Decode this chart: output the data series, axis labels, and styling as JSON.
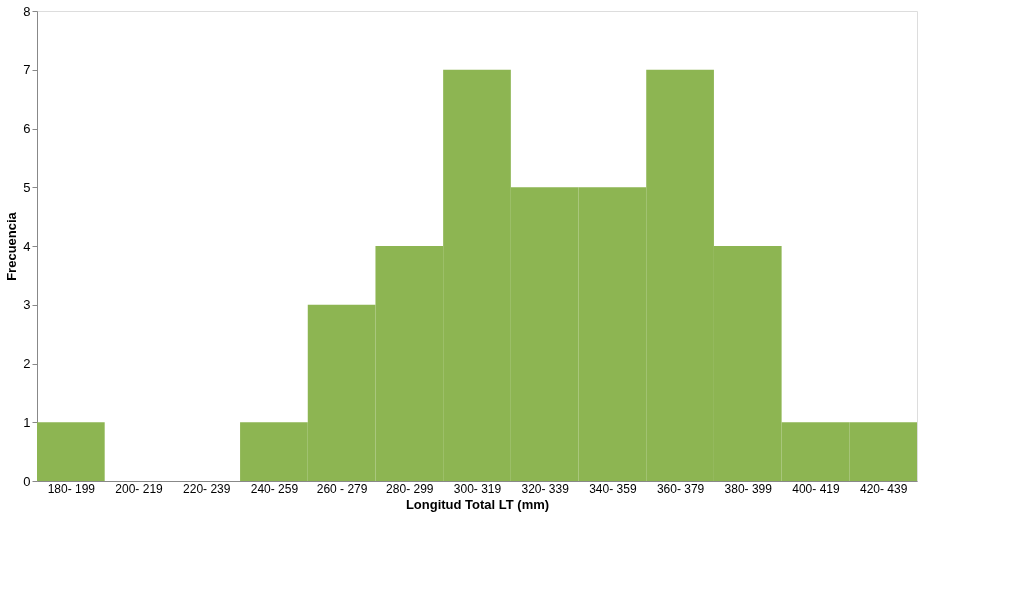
{
  "chart_data": {
    "type": "bar",
    "xlabel": "Longitud Total LT (mm)",
    "ylabel": "Frecuencia",
    "categories": [
      "180- 199",
      "200- 219",
      "220- 239",
      "240- 259",
      "260 - 279",
      "280- 299",
      "300- 319",
      "320- 339",
      "340- 359",
      "360- 379",
      "380- 399",
      "400- 419",
      "420- 439"
    ],
    "values": [
      1,
      0,
      0,
      1,
      3,
      4,
      7,
      5,
      5,
      7,
      4,
      1,
      1
    ],
    "color": "#8db552",
    "ylim": [
      0,
      8
    ],
    "yticks": [
      0,
      1,
      2,
      3,
      4,
      5,
      6,
      7,
      8
    ],
    "grid": false
  }
}
